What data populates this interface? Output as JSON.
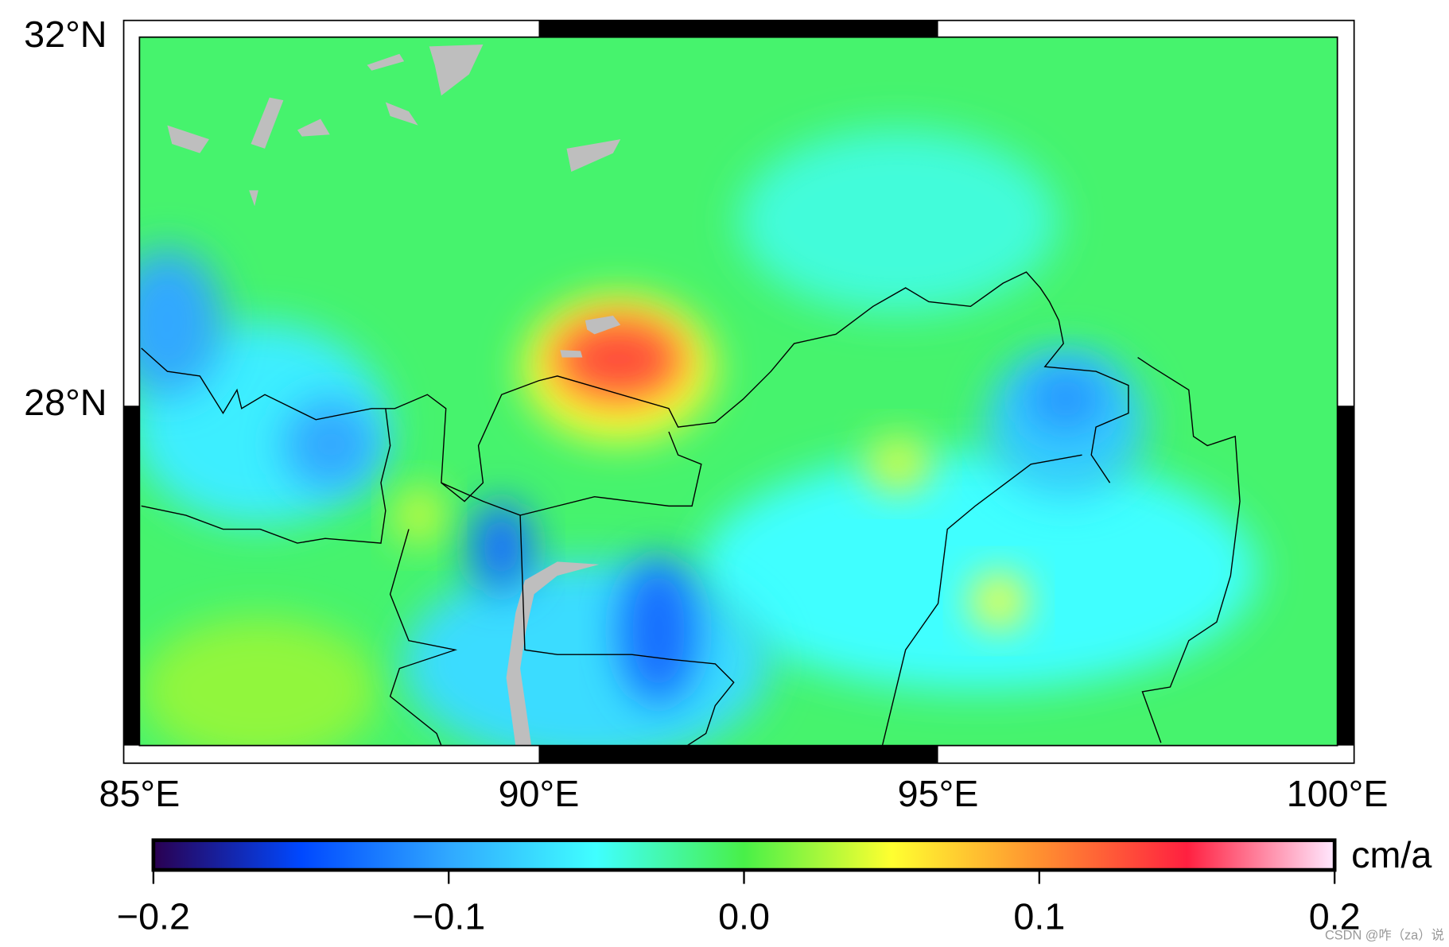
{
  "map": {
    "xlim": [
      85,
      100
    ],
    "ylim": [
      24.3,
      32
    ],
    "xticks": [
      {
        "value": 85,
        "label": "85°E"
      },
      {
        "value": 90,
        "label": "90°E"
      },
      {
        "value": 95,
        "label": "95°E"
      },
      {
        "value": 100,
        "label": "100°E"
      }
    ],
    "yticks": [
      {
        "value": 32,
        "label": "32°N"
      },
      {
        "value": 28,
        "label": "28°N"
      }
    ],
    "background_value": -0.01,
    "anomalies": [
      {
        "lon": 86.5,
        "lat": 24.9,
        "rx": 1.5,
        "ry": 0.8,
        "value": 0.02
      },
      {
        "lon": 94.5,
        "lat": 30.0,
        "rx": 2.0,
        "ry": 1.0,
        "value": -0.04
      },
      {
        "lon": 95.5,
        "lat": 26.2,
        "rx": 3.5,
        "ry": 1.3,
        "value": -0.05
      },
      {
        "lon": 90.6,
        "lat": 25.2,
        "rx": 2.3,
        "ry": 1.1,
        "value": -0.07
      },
      {
        "lon": 86.5,
        "lat": 27.8,
        "rx": 1.6,
        "ry": 1.1,
        "value": -0.06
      },
      {
        "lon": 96.6,
        "lat": 27.8,
        "rx": 1.0,
        "ry": 0.8,
        "value": -0.08
      },
      {
        "lon": 85.35,
        "lat": 28.9,
        "rx": 0.7,
        "ry": 0.8,
        "value": -0.1
      },
      {
        "lon": 87.4,
        "lat": 27.57,
        "rx": 0.6,
        "ry": 0.5,
        "value": -0.1
      },
      {
        "lon": 96.6,
        "lat": 28.07,
        "rx": 0.5,
        "ry": 0.35,
        "value": -0.11
      },
      {
        "lon": 89.53,
        "lat": 26.46,
        "rx": 0.4,
        "ry": 0.5,
        "value": -0.13
      },
      {
        "lon": 91.5,
        "lat": 25.55,
        "rx": 0.5,
        "ry": 0.8,
        "value": -0.13
      },
      {
        "lon": 94.5,
        "lat": 27.36,
        "rx": 0.4,
        "ry": 0.3,
        "value": 0.04
      },
      {
        "lon": 95.76,
        "lat": 25.87,
        "rx": 0.35,
        "ry": 0.3,
        "value": 0.05
      },
      {
        "lon": 88.5,
        "lat": 26.8,
        "rx": 0.3,
        "ry": 0.3,
        "value": 0.04
      },
      {
        "lon": 91.0,
        "lat": 28.4,
        "rx": 1.2,
        "ry": 0.8,
        "value": 0.05
      },
      {
        "lon": 91.0,
        "lat": 28.5,
        "rx": 0.8,
        "ry": 0.45,
        "value": 0.13
      }
    ]
  },
  "colorbar": {
    "unit": "cm/a",
    "lim": [
      -0.2,
      0.2
    ],
    "colors": [
      "#2a0050",
      "#0048ff",
      "#30a8ff",
      "#40ffff",
      "#48f048",
      "#ffff30",
      "#ff9030",
      "#ff2040",
      "#ffe8ff"
    ],
    "ticks": [
      {
        "value": -0.2,
        "label": "−0.2"
      },
      {
        "value": -0.1,
        "label": "−0.1"
      },
      {
        "value": 0.0,
        "label": "0.0"
      },
      0.1,
      0.2
    ]
  },
  "watermark": "CSDN @咋（za）说"
}
